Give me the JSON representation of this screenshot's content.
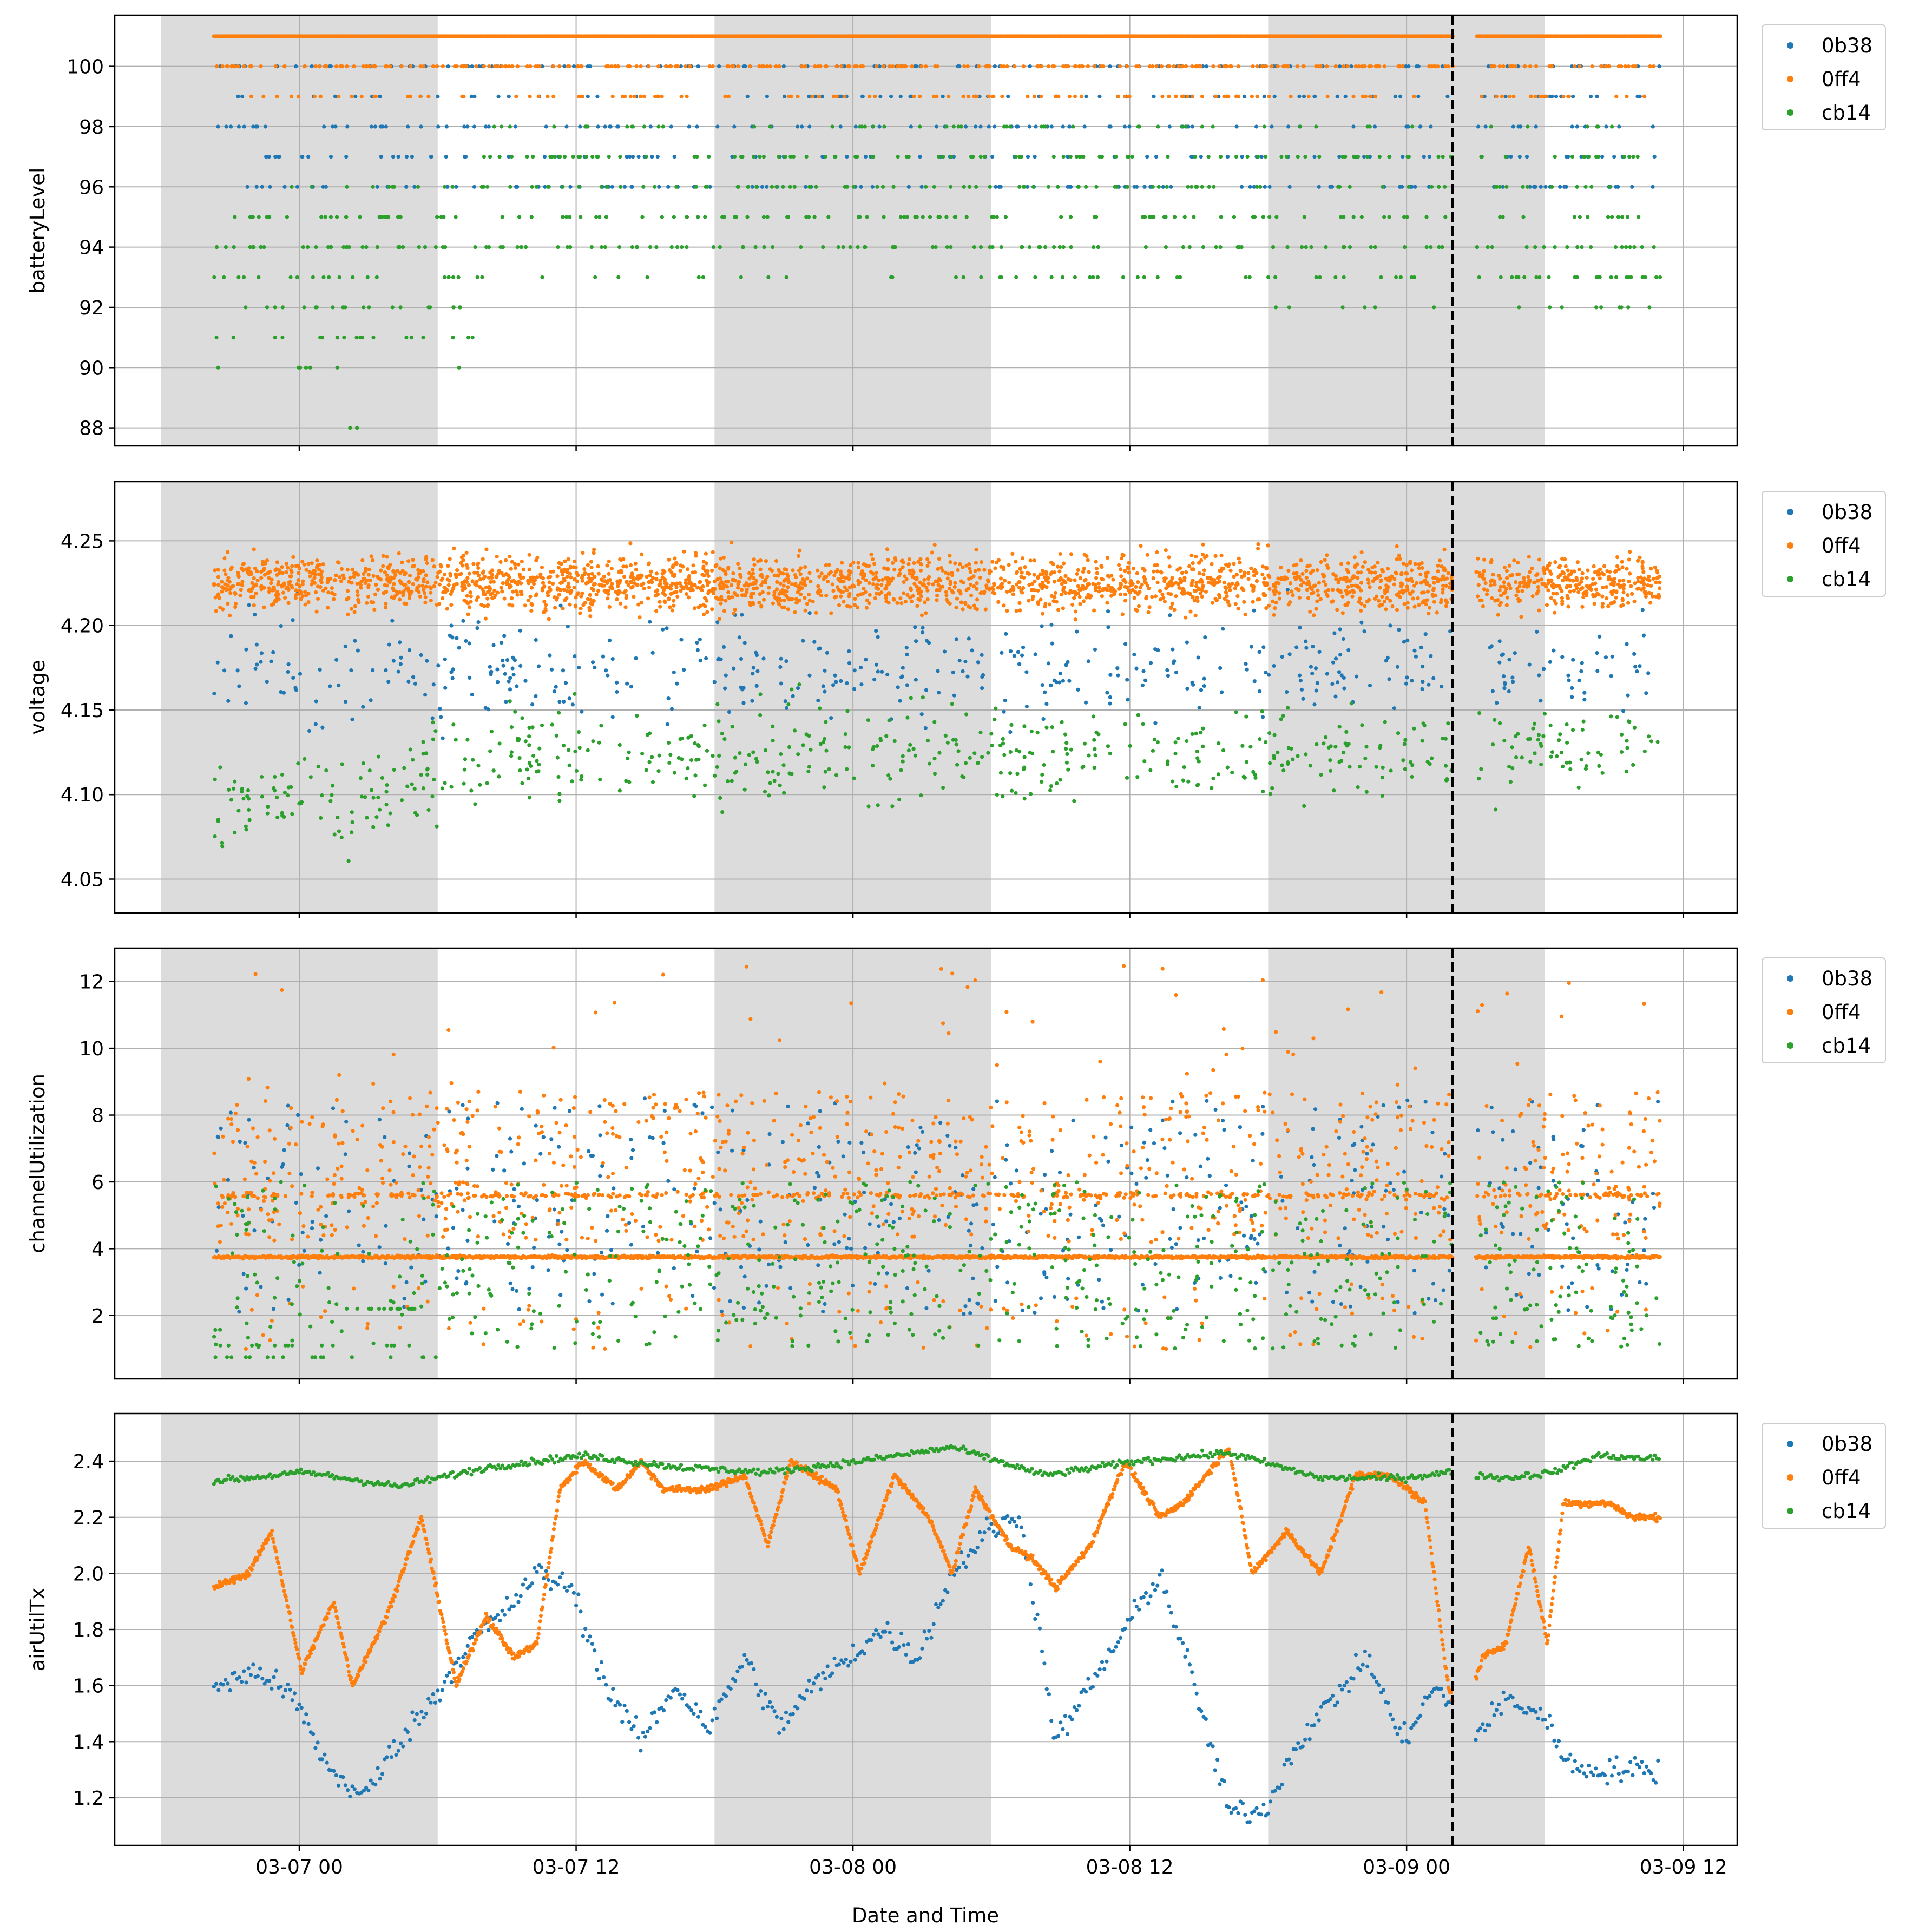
{
  "figure": {
    "xlabel": "Date and Time",
    "x_ticks": [
      "03-07 00",
      "03-07 12",
      "03-08 00",
      "03-08 12",
      "03-09 00",
      "03-09 12"
    ],
    "legend": [
      "0b38",
      "0ff4",
      "cb14"
    ],
    "colors": {
      "0b38": "#1f77b4",
      "0ff4": "#ff7f0e",
      "cb14": "#2ca02c",
      "night": "#dcdcdc",
      "grid": "#b0b0b0",
      "marker": "#000000"
    }
  },
  "chart_data": [
    {
      "type": "scatter",
      "ylabel": "batteryLevel",
      "xlim": [
        "03-06 16:00",
        "03-09 14:20"
      ],
      "ylim": [
        87.4,
        101.7
      ],
      "y_ticks": [
        "88",
        "90",
        "92",
        "94",
        "96",
        "98",
        "100"
      ],
      "y_tick_values": [
        88,
        90,
        92,
        94,
        96,
        98,
        100
      ],
      "series": [
        {
          "name": "0b38",
          "level_values": [
            100,
            99,
            98,
            97,
            96
          ],
          "common_values": [
            98,
            96
          ]
        },
        {
          "name": "0ff4",
          "constant_value": 101,
          "secondary_values": [
            100,
            99
          ]
        },
        {
          "name": "cb14",
          "level_values": [
            100,
            98,
            97,
            96,
            95,
            94,
            93,
            92,
            91,
            90,
            88
          ],
          "common_values": [
            96,
            95,
            94,
            93
          ]
        }
      ],
      "night_shading": [
        [
          "03-06 18:00",
          "03-07 06:00"
        ],
        [
          "03-07 18:00",
          "03-08 06:00"
        ],
        [
          "03-08 18:00",
          "03-09 06:00"
        ]
      ],
      "marker_line": "03-09 02:00",
      "gap": [
        "03-09 02:00",
        "03-09 03:00"
      ],
      "grid": true,
      "legend_position": "outside upper right"
    },
    {
      "type": "scatter",
      "ylabel": "voltage",
      "xlim": [
        "03-06 16:00",
        "03-09 14:20"
      ],
      "ylim": [
        4.03,
        4.285
      ],
      "y_ticks": [
        "4.05",
        "4.10",
        "4.15",
        "4.20",
        "4.25"
      ],
      "y_tick_values": [
        4.05,
        4.1,
        4.15,
        4.2,
        4.25
      ],
      "series": [
        {
          "name": "0b38",
          "typical_range": [
            4.12,
            4.22
          ]
        },
        {
          "name": "0ff4",
          "typical_range": [
            4.19,
            4.26
          ]
        },
        {
          "name": "cb14",
          "typical_range": [
            4.06,
            4.16
          ]
        }
      ],
      "night_shading": [
        [
          "03-06 18:00",
          "03-07 06:00"
        ],
        [
          "03-07 18:00",
          "03-08 06:00"
        ],
        [
          "03-08 18:00",
          "03-09 06:00"
        ]
      ],
      "marker_line": "03-09 02:00",
      "grid": true,
      "legend_position": "outside upper right"
    },
    {
      "type": "scatter",
      "ylabel": "channelUtilization",
      "xlim": [
        "03-06 16:00",
        "03-09 14:20"
      ],
      "ylim": [
        0.1,
        13.0
      ],
      "y_ticks": [
        "2",
        "4",
        "6",
        "8",
        "10",
        "12"
      ],
      "y_tick_values": [
        2,
        4,
        6,
        8,
        10,
        12
      ],
      "series": [
        {
          "name": "0b38",
          "typical_range": [
            2,
            8
          ]
        },
        {
          "name": "0ff4",
          "baseline": 3.75,
          "bands": [
            5.6,
            5.4
          ],
          "max": 12.4
        },
        {
          "name": "cb14",
          "typical_range": [
            1,
            6
          ]
        }
      ],
      "night_shading": [
        [
          "03-06 18:00",
          "03-07 06:00"
        ],
        [
          "03-07 18:00",
          "03-08 06:00"
        ],
        [
          "03-08 18:00",
          "03-09 06:00"
        ]
      ],
      "marker_line": "03-09 02:00",
      "grid": true,
      "legend_position": "outside upper right"
    },
    {
      "type": "scatter",
      "ylabel": "airUtilTx",
      "xlim": [
        "03-06 16:00",
        "03-09 14:20"
      ],
      "ylim": [
        1.03,
        2.57
      ],
      "y_ticks": [
        "1.2",
        "1.4",
        "1.6",
        "1.8",
        "2.0",
        "2.2",
        "2.4"
      ],
      "y_tick_values": [
        1.2,
        1.4,
        1.6,
        1.8,
        2.0,
        2.2,
        2.4
      ],
      "series": [
        {
          "name": "0b38",
          "trace": [
            [
              0.0,
              1.6
            ],
            [
              2.0,
              1.65
            ],
            [
              3.5,
              1.55
            ],
            [
              5.0,
              1.3
            ],
            [
              6.5,
              1.2
            ],
            [
              8.0,
              1.4
            ],
            [
              9.5,
              1.55
            ],
            [
              11.0,
              1.75
            ],
            [
              12.5,
              1.85
            ],
            [
              14.0,
              2.0
            ],
            [
              15.5,
              1.95
            ],
            [
              17.0,
              1.6
            ],
            [
              18.5,
              1.4
            ],
            [
              20.0,
              1.6
            ],
            [
              21.5,
              1.45
            ],
            [
              23.0,
              1.7
            ],
            [
              24.5,
              1.45
            ],
            [
              26.0,
              1.6
            ],
            [
              27.5,
              1.7
            ],
            [
              29.0,
              1.8
            ],
            [
              30.5,
              1.7
            ],
            [
              32.0,
              2.0
            ],
            [
              33.5,
              2.15
            ],
            [
              35.0,
              2.2
            ],
            [
              36.5,
              1.4
            ],
            [
              38.0,
              1.6
            ],
            [
              39.5,
              1.8
            ],
            [
              41.0,
              2.0
            ],
            [
              42.5,
              1.6
            ],
            [
              44.0,
              1.15
            ],
            [
              45.5,
              1.15
            ],
            [
              47.0,
              1.4
            ],
            [
              48.5,
              1.55
            ],
            [
              50.0,
              1.7
            ],
            [
              51.5,
              1.4
            ],
            [
              53.0,
              1.6
            ],
            [
              54.5,
              1.4
            ],
            [
              56.0,
              1.55
            ],
            [
              57.5,
              1.5
            ],
            [
              59.0,
              1.3
            ]
          ]
        },
        {
          "name": "0ff4",
          "trace": [
            [
              0.0,
              1.95
            ],
            [
              1.5,
              2.0
            ],
            [
              2.5,
              2.15
            ],
            [
              3.8,
              1.65
            ],
            [
              5.2,
              1.9
            ],
            [
              6.0,
              1.6
            ],
            [
              7.5,
              1.85
            ],
            [
              9.0,
              2.2
            ],
            [
              10.5,
              1.6
            ],
            [
              11.8,
              1.85
            ],
            [
              13.0,
              1.7
            ],
            [
              14.0,
              1.75
            ],
            [
              15.0,
              2.3
            ],
            [
              16.0,
              2.4
            ],
            [
              17.5,
              2.3
            ],
            [
              18.5,
              2.4
            ],
            [
              19.5,
              2.3
            ],
            [
              21.5,
              2.3
            ],
            [
              23.0,
              2.35
            ],
            [
              24.0,
              2.1
            ],
            [
              25.0,
              2.4
            ],
            [
              27.0,
              2.3
            ],
            [
              28.0,
              2.0
            ],
            [
              29.5,
              2.35
            ],
            [
              31.0,
              2.2
            ],
            [
              32.0,
              2.0
            ],
            [
              33.0,
              2.3
            ],
            [
              34.5,
              2.1
            ],
            [
              35.5,
              2.05
            ],
            [
              36.5,
              1.95
            ],
            [
              38.0,
              2.1
            ],
            [
              39.5,
              2.4
            ],
            [
              41.0,
              2.2
            ],
            [
              42.0,
              2.25
            ],
            [
              43.0,
              2.35
            ],
            [
              44.0,
              2.45
            ],
            [
              45.0,
              2.0
            ],
            [
              46.5,
              2.15
            ],
            [
              48.0,
              2.0
            ],
            [
              49.5,
              2.35
            ],
            [
              51.0,
              2.35
            ],
            [
              52.5,
              2.25
            ],
            [
              53.5,
              1.6
            ],
            [
              54.0,
              1.45
            ],
            [
              55.0,
              1.7
            ],
            [
              56.0,
              1.75
            ],
            [
              57.0,
              2.1
            ],
            [
              57.8,
              1.75
            ],
            [
              58.5,
              2.25
            ],
            [
              59.5,
              2.25
            ],
            [
              60.5,
              2.25
            ],
            [
              61.5,
              2.2
            ],
            [
              62.5,
              2.2
            ]
          ]
        },
        {
          "name": "cb14",
          "trace": [
            [
              0.0,
              2.33
            ],
            [
              4.0,
              2.36
            ],
            [
              8.0,
              2.31
            ],
            [
              12.0,
              2.38
            ],
            [
              16.0,
              2.42
            ],
            [
              20.0,
              2.38
            ],
            [
              24.0,
              2.36
            ],
            [
              28.0,
              2.4
            ],
            [
              32.0,
              2.45
            ],
            [
              36.0,
              2.35
            ],
            [
              40.0,
              2.4
            ],
            [
              44.0,
              2.43
            ],
            [
              48.0,
              2.34
            ],
            [
              51.5,
              2.34
            ],
            [
              53.5,
              2.36
            ],
            [
              56.0,
              2.34
            ],
            [
              58.0,
              2.36
            ],
            [
              60.0,
              2.42
            ],
            [
              62.0,
              2.41
            ]
          ]
        }
      ],
      "night_shading": [
        [
          "03-06 18:00",
          "03-07 06:00"
        ],
        [
          "03-07 18:00",
          "03-08 06:00"
        ],
        [
          "03-08 18:00",
          "03-09 06:00"
        ]
      ],
      "marker_line": "03-09 02:00",
      "grid": true,
      "legend_position": "outside upper right"
    }
  ]
}
